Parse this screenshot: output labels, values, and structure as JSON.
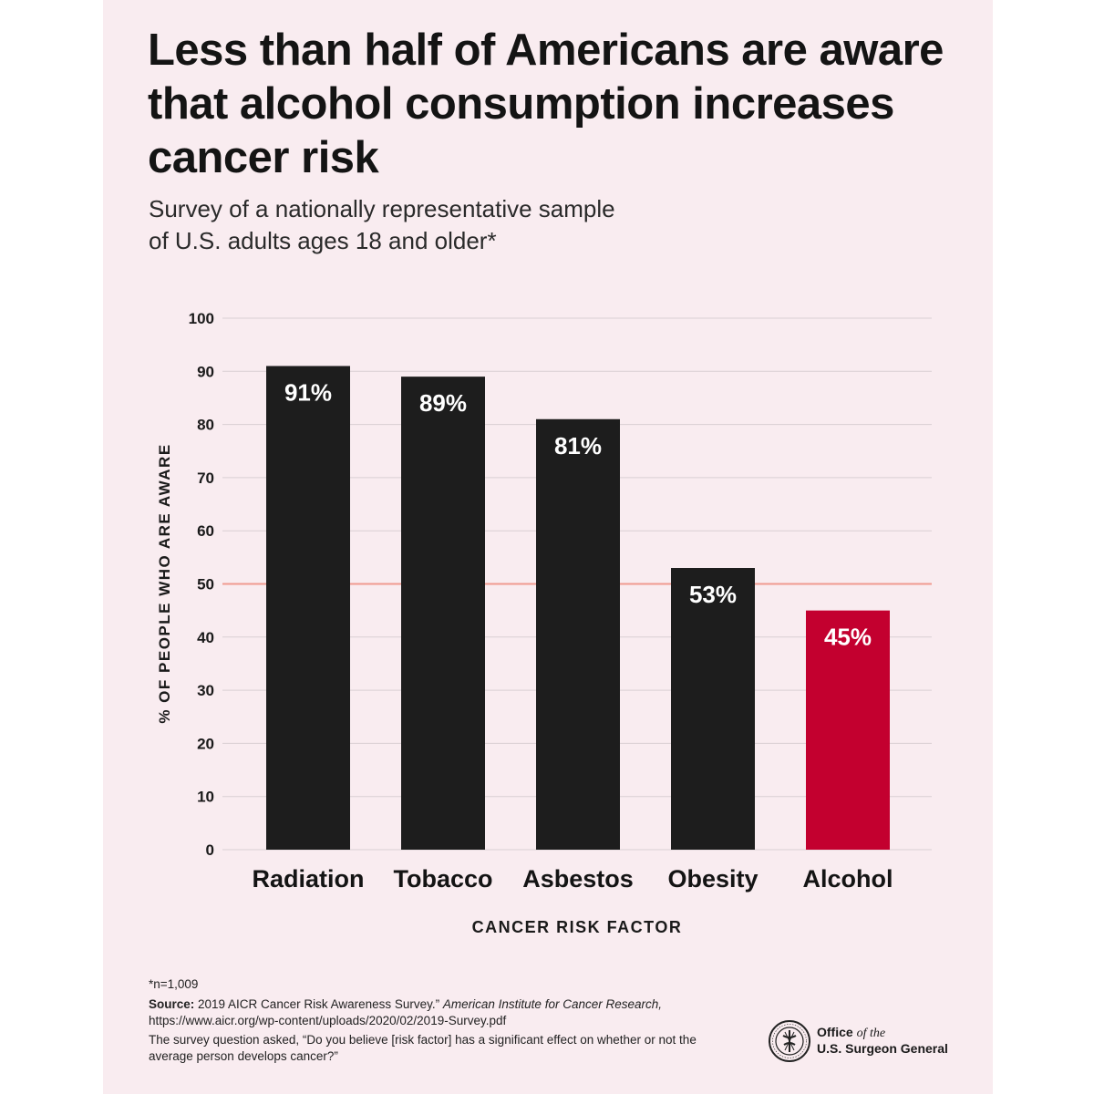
{
  "title": "Less than half of Americans are aware that alcohol consumption increases cancer risk",
  "subtitle_line1": "Survey of a nationally representative sample",
  "subtitle_line2": "of U.S. adults ages 18 and older*",
  "chart_data": {
    "type": "bar",
    "categories": [
      "Radiation",
      "Tobacco",
      "Asbestos",
      "Obesity",
      "Alcohol"
    ],
    "values": [
      91,
      89,
      81,
      53,
      45
    ],
    "value_labels": [
      "91%",
      "89%",
      "81%",
      "53%",
      "45%"
    ],
    "ylabel": "% OF PEOPLE WHO ARE AWARE",
    "xlabel": "CANCER RISK FACTOR",
    "ylim": [
      0,
      100
    ],
    "yticks": [
      0,
      10,
      20,
      30,
      40,
      50,
      60,
      70,
      80,
      90,
      100
    ],
    "reference_line": 50,
    "grid": true,
    "colors": {
      "bar": "#1d1d1d",
      "highlight_bar": "#c3002f",
      "reference_line": "#f09a90",
      "grid": "#d9cfd3"
    },
    "highlight_category": "Alcohol"
  },
  "footnote": "*n=1,009",
  "source": {
    "label": "Source:",
    "text": " 2019 AICR Cancer Risk Awareness Survey.” ",
    "publisher": "American Institute for Cancer Research,",
    "url": " https://www.aicr.org/wp-content/uploads/2020/02/2019-Survey.pdf"
  },
  "question": "The survey question asked, “Do you believe [risk factor] has a significant effect on whether or not the average person develops cancer?”",
  "logo": {
    "line1_a": "Office ",
    "line1_b": "of the",
    "line2": "U.S. Surgeon General",
    "icon": "surgeon-general-seal-icon"
  }
}
